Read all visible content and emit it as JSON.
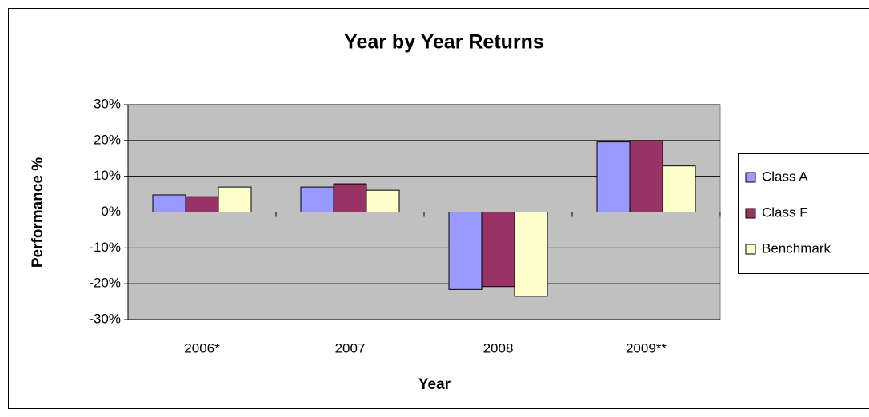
{
  "chart_data": {
    "type": "bar",
    "title": "Year by Year Returns",
    "x_label": "Year",
    "y_label": "Performance %",
    "categories": [
      "2006*",
      "2007",
      "2008",
      "2009**"
    ],
    "series": [
      {
        "name": "Class A",
        "color": "#9999ff",
        "values": [
          4.8,
          7.0,
          -21.6,
          19.6
        ]
      },
      {
        "name": "Class F",
        "color": "#993366",
        "values": [
          4.3,
          7.9,
          -20.8,
          20.0
        ]
      },
      {
        "name": "Benchmark",
        "color": "#ffffcc",
        "values": [
          7.0,
          6.1,
          -23.5,
          12.9
        ]
      }
    ],
    "ylim": [
      -30,
      30
    ],
    "yticks": [
      {
        "value": -30,
        "label": "-30%"
      },
      {
        "value": -20,
        "label": "-20%"
      },
      {
        "value": -10,
        "label": "-10%"
      },
      {
        "value": 0,
        "label": "0%"
      },
      {
        "value": 10,
        "label": "10%"
      },
      {
        "value": 20,
        "label": "20%"
      },
      {
        "value": 30,
        "label": "30%"
      }
    ],
    "grid": true,
    "legend": "right",
    "plot_background": "#c0c0c0"
  }
}
